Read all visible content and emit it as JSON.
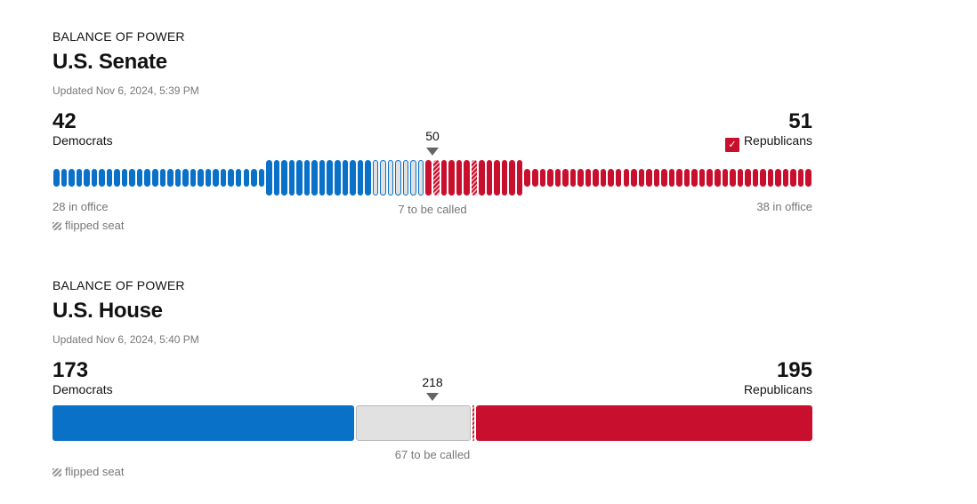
{
  "colors": {
    "dem": "#0a71c8",
    "rep": "#c8102e",
    "uncalled": "#e1e1e1"
  },
  "senate": {
    "kicker": "BALANCE OF POWER",
    "title": "U.S. Senate",
    "updated": "Updated Nov 6, 2024, 5:39 PM",
    "dem_total": "42",
    "dem_label": "Democrats",
    "rep_total": "51",
    "rep_label": "Republicans",
    "rep_winner_check": "✓",
    "majority": "50",
    "dem_in_office_label": "28 in office",
    "rep_in_office_label": "38 in office",
    "uncalled_label": "7 to be called",
    "flipped_label": "flipped seat",
    "chart_data": {
      "type": "bar",
      "total_seats": 100,
      "dem_in_office": 28,
      "dem_won": 14,
      "uncalled": 7,
      "rep_won": 13,
      "rep_won_flipped_positions": [
        2,
        7
      ],
      "rep_in_office": 38,
      "majority_line": 50
    }
  },
  "house": {
    "kicker": "BALANCE OF POWER",
    "title": "U.S. House",
    "updated": "Updated Nov 6, 2024, 5:40 PM",
    "dem_total": "173",
    "dem_label": "Democrats",
    "rep_total": "195",
    "rep_label": "Republicans",
    "majority": "218",
    "uncalled_label": "67 to be called",
    "flipped_label": "flipped seat",
    "chart_data": {
      "type": "bar",
      "total_seats": 435,
      "dem": 173,
      "uncalled": 67,
      "rep_flipped": 2,
      "rep": 195,
      "majority_line": 218
    }
  }
}
